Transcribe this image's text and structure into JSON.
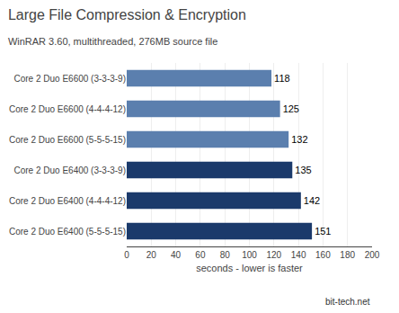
{
  "chart_data": {
    "type": "bar",
    "orientation": "horizontal",
    "title": "Large File Compression & Encryption",
    "subtitle": "WinRAR 3.60, multithreaded, 276MB source file",
    "xlabel": "seconds - lower is faster",
    "annotations": [
      "bit-tech.net"
    ],
    "categories": [
      "Core 2 Duo E6600 (3-3-3-9)",
      "Core 2 Duo E6600 (4-4-4-12)",
      "Core 2 Duo E6600 (5-5-5-15)",
      "Core 2 Duo E6400 (3-3-3-9)",
      "Core 2 Duo E6400 (4-4-4-12)",
      "Core 2 Duo E6400 (5-5-5-15)"
    ],
    "values": [
      118,
      125,
      132,
      135,
      142,
      151
    ],
    "colors": [
      "#5b7fae",
      "#5b7fae",
      "#5b7fae",
      "#1b3a6b",
      "#1b3a6b",
      "#1b3a6b"
    ],
    "xlim": [
      0,
      200
    ],
    "xticks": [
      0,
      20,
      40,
      60,
      80,
      100,
      120,
      140,
      160,
      180,
      200
    ],
    "grid": true,
    "data_labels": true
  }
}
